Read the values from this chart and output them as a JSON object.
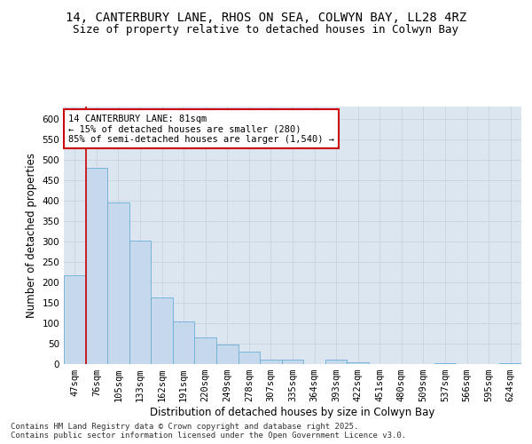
{
  "title_line1": "14, CANTERBURY LANE, RHOS ON SEA, COLWYN BAY, LL28 4RZ",
  "title_line2": "Size of property relative to detached houses in Colwyn Bay",
  "xlabel": "Distribution of detached houses by size in Colwyn Bay",
  "ylabel": "Number of detached properties",
  "categories": [
    "47sqm",
    "76sqm",
    "105sqm",
    "133sqm",
    "162sqm",
    "191sqm",
    "220sqm",
    "249sqm",
    "278sqm",
    "307sqm",
    "335sqm",
    "364sqm",
    "393sqm",
    "422sqm",
    "451sqm",
    "480sqm",
    "509sqm",
    "537sqm",
    "566sqm",
    "595sqm",
    "624sqm"
  ],
  "values": [
    218,
    480,
    395,
    302,
    163,
    105,
    65,
    47,
    30,
    10,
    10,
    0,
    10,
    5,
    0,
    0,
    0,
    2,
    0,
    0,
    2
  ],
  "bar_color": "#c6d9ec",
  "bar_edge_color": "#6aaed6",
  "grid_color": "#ccd6e0",
  "bg_color": "#dce6f0",
  "annotation_text": "14 CANTERBURY LANE: 81sqm\n← 15% of detached houses are smaller (280)\n85% of semi-detached houses are larger (1,540) →",
  "annotation_box_color": "#ffffff",
  "annotation_box_edge": "#cc0000",
  "red_line_x": 0.5,
  "ylim": [
    0,
    630
  ],
  "yticks": [
    0,
    50,
    100,
    150,
    200,
    250,
    300,
    350,
    400,
    450,
    500,
    550,
    600
  ],
  "footnote": "Contains HM Land Registry data © Crown copyright and database right 2025.\nContains public sector information licensed under the Open Government Licence v3.0.",
  "title_fontsize": 10,
  "subtitle_fontsize": 9,
  "label_fontsize": 8.5,
  "tick_fontsize": 7.5,
  "annot_fontsize": 7.5
}
